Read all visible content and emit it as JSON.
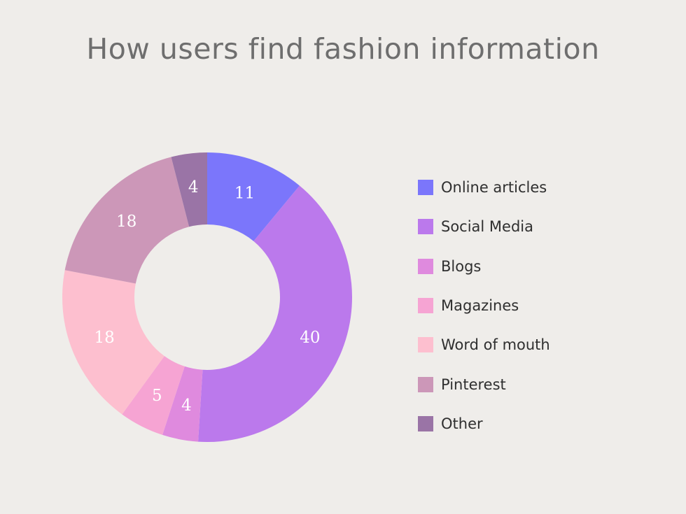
{
  "chart_data": {
    "type": "pie",
    "variant": "donut",
    "title": "How users find fashion information",
    "categories": [
      "Online articles",
      "Social Media",
      "Blogs",
      "Magazines",
      "Word of mouth",
      "Pinterest",
      "Other"
    ],
    "values": [
      11,
      40,
      4,
      5,
      18,
      18,
      4
    ],
    "colors": [
      "#7b76fb",
      "#bb79ec",
      "#df8ade",
      "#f6a4d3",
      "#fdbfcf",
      "#cc97b8",
      "#9a74a6"
    ],
    "legend_position": "right",
    "data_labels": true
  }
}
